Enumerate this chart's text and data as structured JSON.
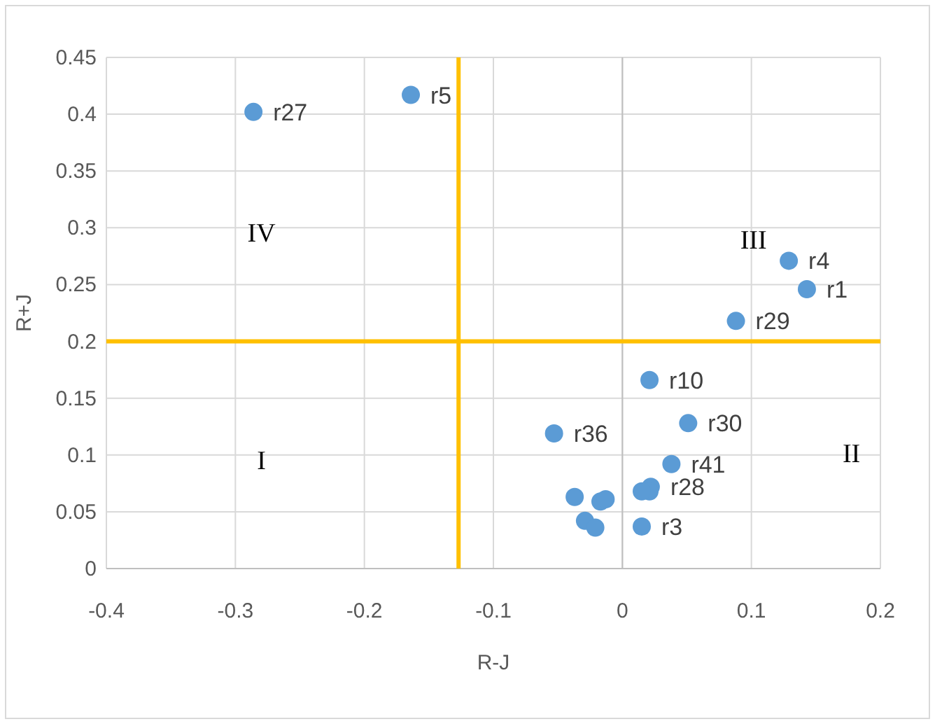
{
  "chart_data": {
    "type": "scatter",
    "xlabel": "R-J",
    "ylabel": "R+J",
    "series": [
      {
        "color": "#5b9bd5",
        "x": [
          -0.286,
          -0.164,
          0.129,
          0.143,
          0.088,
          0.021,
          0.051,
          -0.053,
          0.038,
          0.022,
          0.021,
          0.015,
          0.015,
          -0.037,
          -0.029,
          -0.021,
          -0.017,
          -0.013
        ],
        "values": [
          0.402,
          0.417,
          0.271,
          0.246,
          0.218,
          0.166,
          0.128,
          0.119,
          0.092,
          0.072,
          0.068,
          0.068,
          0.037,
          0.063,
          0.042,
          0.036,
          0.059,
          0.061
        ]
      }
    ],
    "xlim": [
      -0.4,
      0.2
    ],
    "xticks": [
      -0.4,
      -0.3,
      -0.2,
      -0.1,
      0,
      0.1,
      0.2
    ],
    "ylim": [
      0,
      0.45
    ],
    "yticks": [
      0,
      0.05,
      0.1,
      0.15,
      0.2,
      0.25,
      0.3,
      0.35,
      0.4,
      0.45
    ],
    "grid": true,
    "marker": "circle",
    "ref_lines": [
      {
        "axis": "x",
        "value": -0.127,
        "color": "#ffc000"
      },
      {
        "axis": "y",
        "value": 0.2,
        "color": "#ffc000"
      }
    ],
    "annotations": [
      {
        "text": "r27",
        "x": -0.286,
        "y": 0.402
      },
      {
        "text": "r5",
        "x": -0.164,
        "y": 0.417
      },
      {
        "text": "r4",
        "x": 0.129,
        "y": 0.271
      },
      {
        "text": "r1",
        "x": 0.143,
        "y": 0.246
      },
      {
        "text": "r29",
        "x": 0.088,
        "y": 0.218
      },
      {
        "text": "r10",
        "x": 0.021,
        "y": 0.166
      },
      {
        "text": "r30",
        "x": 0.051,
        "y": 0.128
      },
      {
        "text": "r36",
        "x": -0.053,
        "y": 0.119
      },
      {
        "text": "r41",
        "x": 0.038,
        "y": 0.092
      },
      {
        "text": "r28",
        "x": 0.022,
        "y": 0.072
      },
      {
        "text": "r3",
        "x": 0.015,
        "y": 0.037
      },
      "IV",
      "III",
      "I",
      "II"
    ]
  }
}
